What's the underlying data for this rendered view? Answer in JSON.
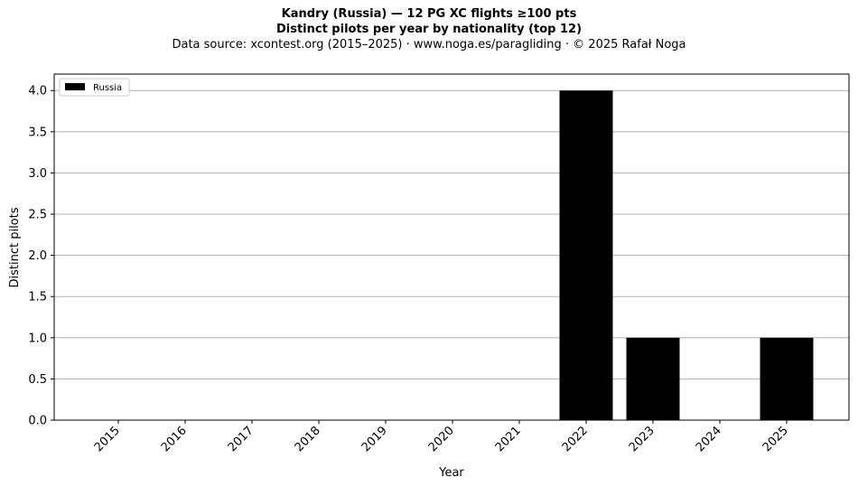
{
  "chart_data": {
    "type": "bar",
    "title": "Kandry (Russia)  —  12 PG XC flights ≥100 pts",
    "title2": "Distinct pilots per year by nationality (top 12)",
    "subtitle": "Data source: xcontest.org (2015–2025)  ·  www.noga.es/paragliding  ·  © 2025 Rafał Noga",
    "xlabel": "Year",
    "ylabel": "Distinct pilots",
    "categories": [
      "2015",
      "2016",
      "2017",
      "2018",
      "2019",
      "2020",
      "2021",
      "2022",
      "2023",
      "2024",
      "2025"
    ],
    "series": [
      {
        "name": "Russia",
        "color": "#000000",
        "values": [
          0,
          0,
          0,
          0,
          0,
          0,
          0,
          4,
          1,
          0,
          1
        ]
      }
    ],
    "ylim": [
      0,
      4.2
    ],
    "yticks": [
      "0.0",
      "0.5",
      "1.0",
      "1.5",
      "2.0",
      "2.5",
      "3.0",
      "3.5",
      "4.0"
    ],
    "grid": "y",
    "legend_position": "top-left"
  }
}
